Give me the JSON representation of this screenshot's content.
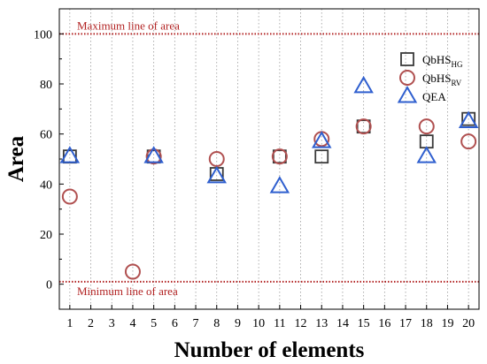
{
  "chart_data": {
    "type": "scatter",
    "title": "",
    "xlabel": "Number of elements",
    "ylabel": "Area",
    "xlim": [
      0.5,
      20.5
    ],
    "ylim": [
      -10,
      110
    ],
    "x_ticks": [
      1,
      2,
      3,
      4,
      5,
      6,
      7,
      8,
      9,
      10,
      11,
      12,
      13,
      14,
      15,
      16,
      17,
      18,
      19,
      20
    ],
    "y_ticks": [
      0,
      20,
      40,
      60,
      80,
      100
    ],
    "grid": "vertical dotted",
    "legend_position": "top-right",
    "reference_lines": [
      {
        "label": "Maximum line of area",
        "y": 100,
        "color": "#b22222"
      },
      {
        "label": "Minimum line of area",
        "y": 1,
        "color": "#b22222"
      }
    ],
    "series": [
      {
        "name": "QbHS",
        "subscript": "HG",
        "marker": "square",
        "color": "#3a3a3a",
        "points": [
          {
            "x": 1,
            "y": 51
          },
          {
            "x": 5,
            "y": 51
          },
          {
            "x": 8,
            "y": 44
          },
          {
            "x": 11,
            "y": 51
          },
          {
            "x": 13,
            "y": 51
          },
          {
            "x": 15,
            "y": 63
          },
          {
            "x": 18,
            "y": 57
          },
          {
            "x": 20,
            "y": 66
          }
        ]
      },
      {
        "name": "QbHS",
        "subscript": "RV",
        "marker": "circle",
        "color": "#b05050",
        "points": [
          {
            "x": 1,
            "y": 35
          },
          {
            "x": 4,
            "y": 5
          },
          {
            "x": 5,
            "y": 51
          },
          {
            "x": 8,
            "y": 50
          },
          {
            "x": 11,
            "y": 51
          },
          {
            "x": 13,
            "y": 58
          },
          {
            "x": 15,
            "y": 63
          },
          {
            "x": 18,
            "y": 63
          },
          {
            "x": 20,
            "y": 57
          }
        ]
      },
      {
        "name": "QEA",
        "subscript": "",
        "marker": "triangle",
        "color": "#2f5fcf",
        "points": [
          {
            "x": 1,
            "y": 51
          },
          {
            "x": 5,
            "y": 51
          },
          {
            "x": 8,
            "y": 43
          },
          {
            "x": 11,
            "y": 39
          },
          {
            "x": 13,
            "y": 57
          },
          {
            "x": 15,
            "y": 79
          },
          {
            "x": 18,
            "y": 51
          },
          {
            "x": 20,
            "y": 65
          }
        ]
      }
    ]
  }
}
